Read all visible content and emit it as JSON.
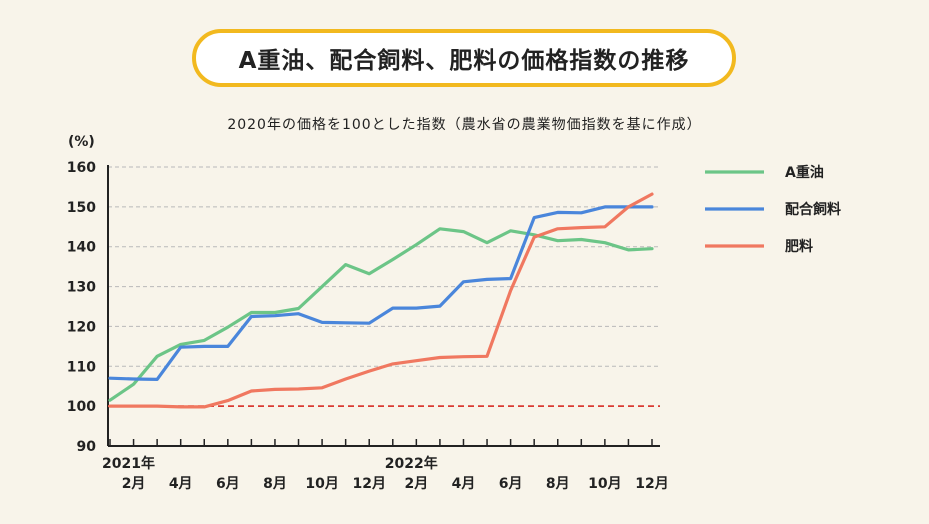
{
  "chart_data": {
    "type": "line",
    "title": "A重油、配合飼料、肥料の価格指数の推移",
    "subtitle": "2020年の価格を100とした指数（農水省の農業物価指数を基に作成）",
    "y_unit": "(%)",
    "ylim": [
      90,
      160
    ],
    "yticks": [
      90,
      100,
      110,
      120,
      130,
      140,
      150,
      160
    ],
    "grid": true,
    "legend_position": "right",
    "x": [
      "2021-01",
      "2021-02",
      "2021-03",
      "2021-04",
      "2021-05",
      "2021-06",
      "2021-07",
      "2021-08",
      "2021-09",
      "2021-10",
      "2021-11",
      "2021-12",
      "2022-01",
      "2022-02",
      "2022-03",
      "2022-04",
      "2022-05",
      "2022-06",
      "2022-07",
      "2022-08",
      "2022-09",
      "2022-10",
      "2022-11",
      "2022-12"
    ],
    "x_tick_labels": [
      {
        "x": "2021-02",
        "label": "2月",
        "year": "2021年"
      },
      {
        "x": "2021-04",
        "label": "4月"
      },
      {
        "x": "2021-06",
        "label": "6月"
      },
      {
        "x": "2021-08",
        "label": "8月"
      },
      {
        "x": "2021-10",
        "label": "10月"
      },
      {
        "x": "2021-12",
        "label": "12月"
      },
      {
        "x": "2022-02",
        "label": "2月",
        "year": "2022年"
      },
      {
        "x": "2022-04",
        "label": "4月"
      },
      {
        "x": "2022-06",
        "label": "6月"
      },
      {
        "x": "2022-08",
        "label": "8月"
      },
      {
        "x": "2022-10",
        "label": "10月"
      },
      {
        "x": "2022-12",
        "label": "12月"
      }
    ],
    "series": [
      {
        "name": "A重油",
        "color": "#6cc587",
        "values": [
          101.5,
          105.5,
          112.5,
          115.5,
          116.5,
          119.8,
          123.5,
          123.5,
          124.5,
          130,
          135.5,
          133.2,
          136.8,
          140.5,
          144.5,
          143.8,
          141,
          144,
          143,
          141.5,
          141.8,
          141,
          139.2,
          139.5
        ]
      },
      {
        "name": "配合飼料",
        "color": "#4a86db",
        "values": [
          107,
          106.8,
          106.7,
          114.8,
          115,
          115,
          122.5,
          122.7,
          123.2,
          121,
          120.9,
          120.8,
          124.6,
          124.6,
          125.1,
          131.2,
          131.8,
          132,
          147.3,
          148.6,
          148.5,
          150,
          150,
          150
        ]
      },
      {
        "name": "肥料",
        "color": "#f07860",
        "values": [
          100,
          100,
          100,
          99.8,
          99.8,
          101.4,
          103.8,
          104.2,
          104.3,
          104.6,
          106.8,
          108.8,
          110.6,
          111.4,
          112.2,
          112.4,
          112.5,
          129,
          142.4,
          144.5,
          144.8,
          145,
          150,
          153.2
        ]
      }
    ],
    "reference_line": {
      "value": 100,
      "color": "#d93a32",
      "style": "dashed"
    }
  }
}
